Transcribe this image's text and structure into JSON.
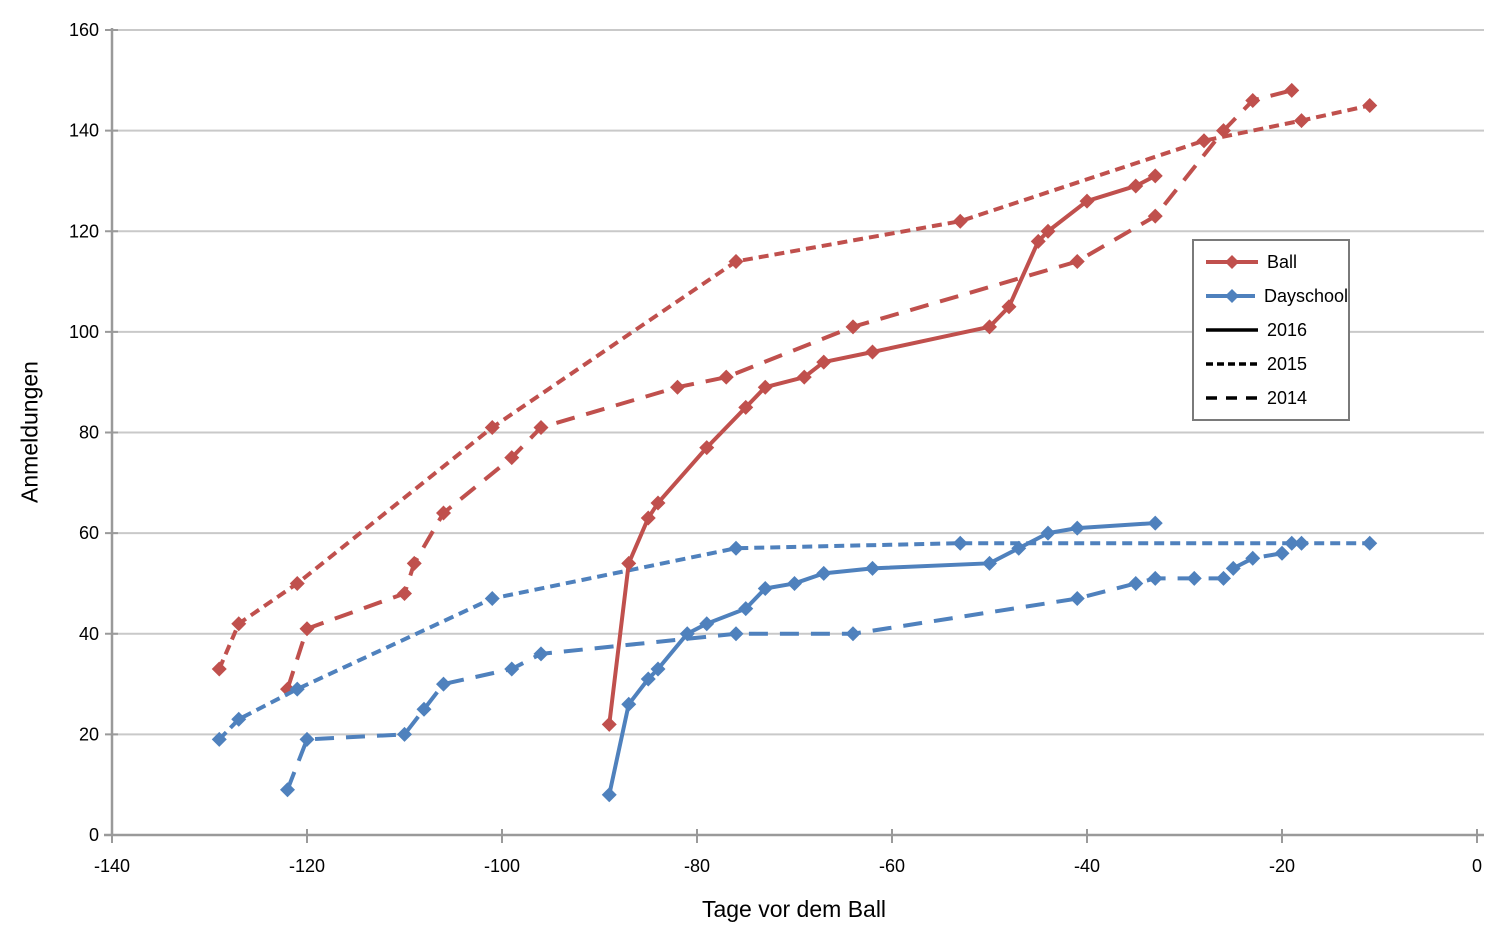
{
  "chart_data": {
    "type": "line",
    "title": "",
    "xlabel": "Tage vor dem Ball",
    "ylabel": "Anmeldungen",
    "xlim": [
      -140,
      0
    ],
    "ylim": [
      0,
      160
    ],
    "x_ticks": [
      -140,
      -120,
      -100,
      -80,
      -60,
      -40,
      -20,
      0
    ],
    "y_ticks": [
      0,
      20,
      40,
      60,
      80,
      100,
      120,
      140,
      160
    ],
    "grid": "horizontal-only",
    "legend_position": "inside-right",
    "style": {
      "ball_color": "#C0504D",
      "dayschool_color": "#4F81BD",
      "grid_color": "#C9C9C9",
      "axis_color": "#9A9A9A",
      "legend_border_color": "#7A7A7A",
      "text_color": "#000000"
    },
    "series": [
      {
        "id": "ball-2015",
        "group": "Ball",
        "year": "2015",
        "color": "#C0504D",
        "line_style": "dash",
        "marker": "diamond",
        "points": [
          [
            -129,
            33
          ],
          [
            -127,
            42
          ],
          [
            -121,
            50
          ],
          [
            -101,
            81
          ],
          [
            -76,
            114
          ],
          [
            -53,
            122
          ],
          [
            -28,
            138
          ],
          [
            -18,
            142
          ],
          [
            -11,
            145
          ]
        ]
      },
      {
        "id": "ball-2014",
        "group": "Ball",
        "year": "2014",
        "color": "#C0504D",
        "line_style": "long-dash",
        "marker": "diamond",
        "points": [
          [
            -122,
            29
          ],
          [
            -120,
            41
          ],
          [
            -110,
            48
          ],
          [
            -109,
            54
          ],
          [
            -106,
            64
          ],
          [
            -99,
            75
          ],
          [
            -96,
            81
          ],
          [
            -82,
            89
          ],
          [
            -77,
            91
          ],
          [
            -64,
            101
          ],
          [
            -41,
            114
          ],
          [
            -33,
            123
          ],
          [
            -26,
            140
          ],
          [
            -23,
            146
          ],
          [
            -19,
            148
          ]
        ]
      },
      {
        "id": "dayschool-2015",
        "group": "Dayschool",
        "year": "2015",
        "color": "#4F81BD",
        "line_style": "dash",
        "marker": "diamond",
        "points": [
          [
            -129,
            19
          ],
          [
            -127,
            23
          ],
          [
            -121,
            29
          ],
          [
            -101,
            47
          ],
          [
            -76,
            57
          ],
          [
            -53,
            58
          ],
          [
            -18,
            58
          ],
          [
            -11,
            58
          ]
        ]
      },
      {
        "id": "dayschool-2014",
        "group": "Dayschool",
        "year": "2014",
        "color": "#4F81BD",
        "line_style": "long-dash",
        "marker": "diamond",
        "points": [
          [
            -122,
            9
          ],
          [
            -120,
            19
          ],
          [
            -110,
            20
          ],
          [
            -108,
            25
          ],
          [
            -106,
            30
          ],
          [
            -99,
            33
          ],
          [
            -96,
            36
          ],
          [
            -76,
            40
          ],
          [
            -64,
            40
          ],
          [
            -41,
            47
          ],
          [
            -35,
            50
          ],
          [
            -33,
            51
          ],
          [
            -29,
            51
          ],
          [
            -26,
            51
          ],
          [
            -25,
            53
          ],
          [
            -23,
            55
          ],
          [
            -20,
            56
          ],
          [
            -19,
            58
          ]
        ]
      },
      {
        "id": "ball-2016",
        "group": "Ball",
        "year": "2016",
        "color": "#C0504D",
        "line_style": "solid",
        "marker": "diamond",
        "points": [
          [
            -89,
            22
          ],
          [
            -87,
            54
          ],
          [
            -85,
            63
          ],
          [
            -84,
            66
          ],
          [
            -79,
            77
          ],
          [
            -75,
            85
          ],
          [
            -73,
            89
          ],
          [
            -69,
            91
          ],
          [
            -67,
            94
          ],
          [
            -62,
            96
          ],
          [
            -50,
            101
          ],
          [
            -48,
            105
          ],
          [
            -45,
            118
          ],
          [
            -44,
            120
          ],
          [
            -40,
            126
          ],
          [
            -35,
            129
          ],
          [
            -33,
            131
          ]
        ]
      },
      {
        "id": "dayschool-2016",
        "group": "Dayschool",
        "year": "2016",
        "color": "#4F81BD",
        "line_style": "solid",
        "marker": "diamond",
        "points": [
          [
            -89,
            8
          ],
          [
            -87,
            26
          ],
          [
            -85,
            31
          ],
          [
            -84,
            33
          ],
          [
            -81,
            40
          ],
          [
            -79,
            42
          ],
          [
            -75,
            45
          ],
          [
            -73,
            49
          ],
          [
            -70,
            50
          ],
          [
            -67,
            52
          ],
          [
            -62,
            53
          ],
          [
            -50,
            54
          ],
          [
            -47,
            57
          ],
          [
            -44,
            60
          ],
          [
            -41,
            61
          ],
          [
            -33,
            62
          ]
        ]
      }
    ],
    "legend": {
      "entries": [
        {
          "label": "Ball",
          "color": "#C0504D",
          "style": "solid",
          "marker": true
        },
        {
          "label": "Dayschool",
          "color": "#4F81BD",
          "style": "solid",
          "marker": true
        },
        {
          "label": "2016",
          "color": "#000000",
          "style": "solid",
          "marker": false
        },
        {
          "label": "2015",
          "color": "#000000",
          "style": "dash",
          "marker": false
        },
        {
          "label": "2014",
          "color": "#000000",
          "style": "long-dash",
          "marker": false
        }
      ]
    }
  }
}
